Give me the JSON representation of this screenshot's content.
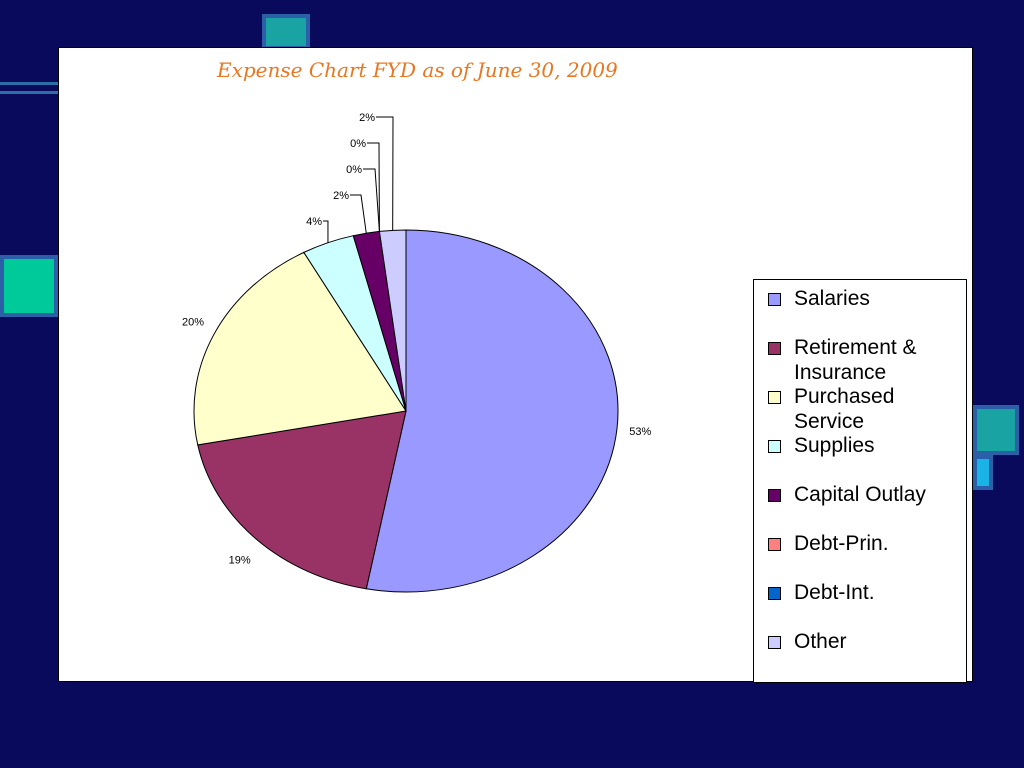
{
  "background_color": "#0a0a5c",
  "chart_data": {
    "type": "pie",
    "title": "Expense Chart FYD as of June 30, 2009",
    "categories": [
      "Salaries",
      "Retirement & Insurance",
      "Purchased Service",
      "Supplies",
      "Capital Outlay",
      "Debt-Prin.",
      "Debt-Int.",
      "Other"
    ],
    "values": [
      53,
      19,
      20,
      4,
      2,
      0,
      0,
      2
    ],
    "data_labels": [
      "53%",
      "19%",
      "20%",
      "4%",
      "2%",
      "0%",
      "0%",
      "2%"
    ],
    "colors": [
      "#9999ff",
      "#993366",
      "#ffffcc",
      "#ccffff",
      "#660066",
      "#ff8080",
      "#0066cc",
      "#ccccff"
    ],
    "legend_position": "right",
    "units": "percent"
  }
}
